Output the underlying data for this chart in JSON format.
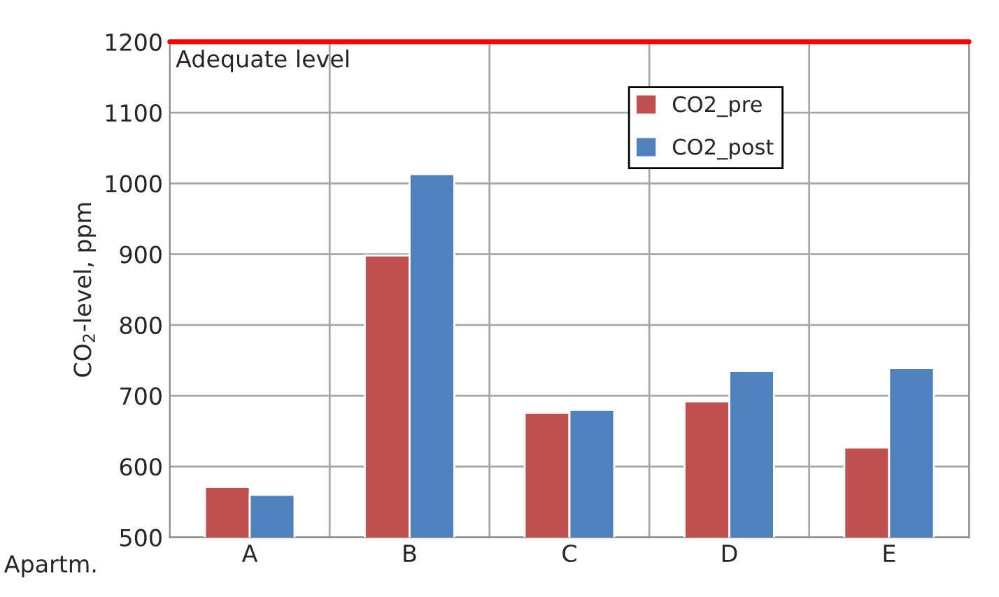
{
  "chart_data": {
    "type": "bar",
    "xlabel": "Apartm.",
    "ylabel": "CO$_{2}$-level, ppm",
    "categories": [
      "A",
      "B",
      "C",
      "D",
      "E"
    ],
    "series": [
      {
        "name": "CO2_pre",
        "color": "#c0504d",
        "values": [
          571,
          898,
          676,
          692,
          627
        ]
      },
      {
        "name": "CO2_post",
        "color": "#4f81bd",
        "values": [
          560,
          1013,
          680,
          735,
          739
        ]
      }
    ],
    "ylim": [
      500,
      1200
    ],
    "yticks": [
      500,
      600,
      700,
      800,
      900,
      1000,
      1100,
      1200
    ],
    "ref_lines": [
      {
        "axis": "y",
        "value": 1200,
        "label": "Adequate level",
        "color": "#ff0000"
      }
    ],
    "grid": true,
    "legend": "top right"
  }
}
